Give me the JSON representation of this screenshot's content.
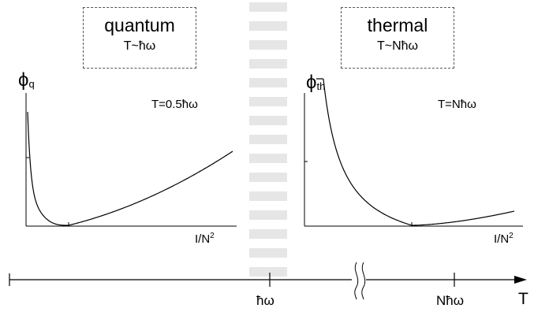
{
  "regimes": {
    "quantum": {
      "title": "quantum",
      "condition": "T~ħω"
    },
    "thermal": {
      "title": "thermal",
      "condition": "T~Nħω"
    }
  },
  "plots": {
    "left": {
      "ylabel": "ϕ",
      "ylabel_sub": "q",
      "temperature": "T=0.5ħω",
      "xlabel": "I/N",
      "xlabel_sup": "2"
    },
    "right": {
      "ylabel": "ϕ",
      "ylabel_sub": "th",
      "temperature": "T=Nħω",
      "xlabel": "I/N",
      "xlabel_sup": "2"
    }
  },
  "temperature_axis": {
    "label": "T",
    "ticks": [
      "ħω",
      "Nħω"
    ]
  }
}
